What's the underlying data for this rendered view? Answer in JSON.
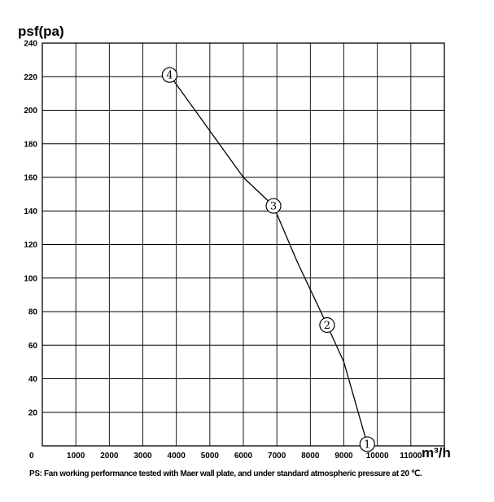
{
  "chart_data": {
    "type": "line",
    "ylabel": "psf(pa)",
    "xlabel": "m³/h",
    "x_ticks": [
      "0",
      "1000",
      "2000",
      "3000",
      "4000",
      "5000",
      "6000",
      "7000",
      "8000",
      "9000",
      "10000",
      "11000"
    ],
    "y_ticks": [
      "0",
      "20",
      "40",
      "60",
      "80",
      "100",
      "120",
      "140",
      "160",
      "180",
      "200",
      "220",
      "240"
    ],
    "xlim": [
      0,
      12000
    ],
    "ylim": [
      0,
      240
    ],
    "grid": true,
    "series": [
      {
        "x": [
          3800,
          6000,
          6900,
          7600,
          8500,
          9000,
          9700
        ],
        "y": [
          221,
          160,
          143,
          110,
          72,
          50,
          1
        ]
      }
    ],
    "markers": [
      {
        "label": "1",
        "x": 9700,
        "y": 1
      },
      {
        "label": "2",
        "x": 8500,
        "y": 72
      },
      {
        "label": "3",
        "x": 6900,
        "y": 143
      },
      {
        "label": "4",
        "x": 3800,
        "y": 221
      }
    ],
    "colors": {
      "line": "#000000",
      "grid": "#000000",
      "background": "#ffffff"
    }
  },
  "footnote": "PS: Fan working performance tested with Maer wall plate, and under standard atmospheric pressure at 20 ℃."
}
